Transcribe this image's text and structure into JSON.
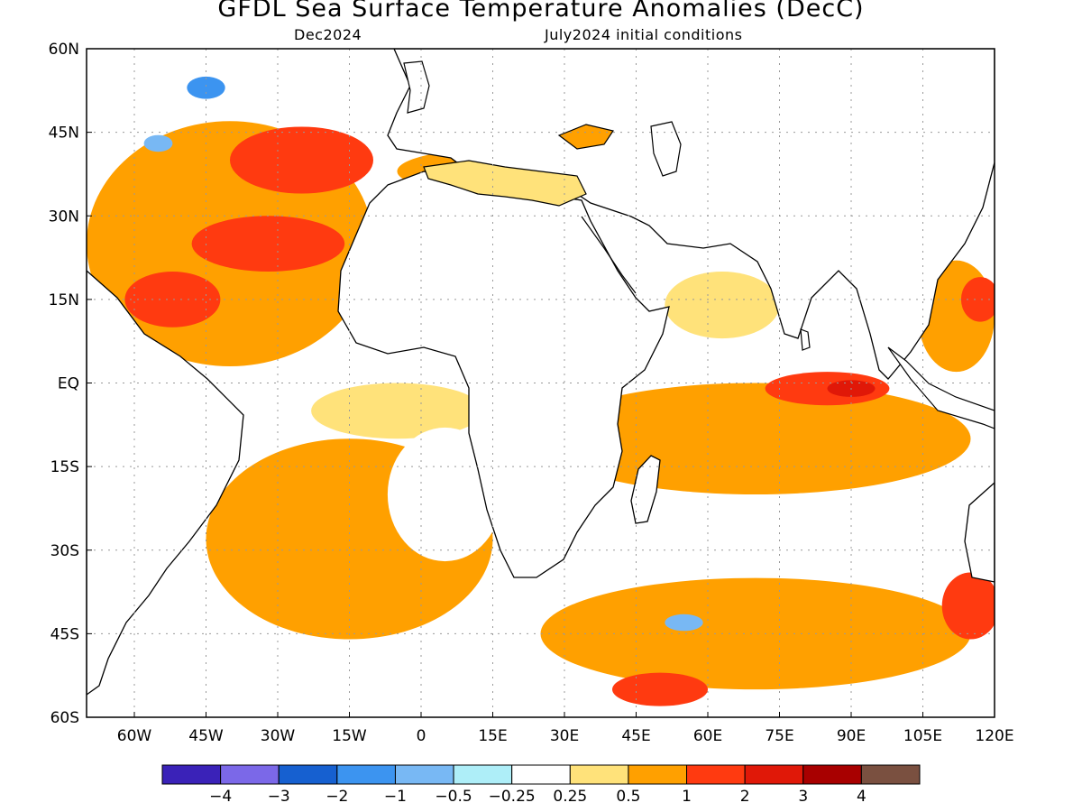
{
  "title": "GFDL Sea Surface Temperature Anomalies (DecC)",
  "subtitle_left": "Dec2024",
  "subtitle_right": "July2024 initial conditions",
  "colors": {
    "land": "#ffffff",
    "coast": "#000000",
    "grid": "#999999"
  },
  "chart_data": {
    "type": "heatmap",
    "title": "GFDL Sea Surface Temperature Anomalies (DecC)",
    "region": "Atlantic and Indian Ocean",
    "xlim": [
      -70,
      120
    ],
    "ylim": [
      -60,
      60
    ],
    "x_ticks": [
      {
        "value": -60,
        "label": "60W"
      },
      {
        "value": -45,
        "label": "45W"
      },
      {
        "value": -30,
        "label": "30W"
      },
      {
        "value": -15,
        "label": "15W"
      },
      {
        "value": 0,
        "label": "0"
      },
      {
        "value": 15,
        "label": "15E"
      },
      {
        "value": 30,
        "label": "30E"
      },
      {
        "value": 45,
        "label": "45E"
      },
      {
        "value": 60,
        "label": "60E"
      },
      {
        "value": 75,
        "label": "75E"
      },
      {
        "value": 90,
        "label": "90E"
      },
      {
        "value": 105,
        "label": "105E"
      },
      {
        "value": 120,
        "label": "120E"
      }
    ],
    "y_ticks": [
      {
        "value": 60,
        "label": "60N"
      },
      {
        "value": 45,
        "label": "45N"
      },
      {
        "value": 30,
        "label": "30N"
      },
      {
        "value": 15,
        "label": "15N"
      },
      {
        "value": 0,
        "label": "EQ"
      },
      {
        "value": -15,
        "label": "15S"
      },
      {
        "value": -30,
        "label": "30S"
      },
      {
        "value": -45,
        "label": "45S"
      },
      {
        "value": -60,
        "label": "60S"
      }
    ],
    "grid": true,
    "colorbar": {
      "colors": [
        "#3a22b8",
        "#7b68e8",
        "#1660d0",
        "#3c94f0",
        "#78b8f4",
        "#aeeef8",
        "#ffffff",
        "#ffe27a",
        "#ffa000",
        "#ff3a10",
        "#e01808",
        "#a80000",
        "#7a5040"
      ],
      "labels": [
        "−4",
        "−3",
        "−2",
        "−1",
        "−0.5",
        "−0.25",
        "0.25",
        "0.5",
        "1",
        "2",
        "3",
        "4"
      ]
    },
    "anomaly_regions": [
      {
        "lon": -40,
        "lat": 25,
        "rx": 30,
        "ry": 22,
        "value": 0.75
      },
      {
        "lon": -32,
        "lat": 25,
        "rx": 16,
        "ry": 5,
        "value": 1.5
      },
      {
        "lon": -52,
        "lat": 15,
        "rx": 10,
        "ry": 5,
        "value": 1.5
      },
      {
        "lon": -25,
        "lat": 40,
        "rx": 15,
        "ry": 6,
        "value": 1.5
      },
      {
        "lon": -45,
        "lat": 53,
        "rx": 4,
        "ry": 2,
        "value": -1.5
      },
      {
        "lon": -55,
        "lat": 43,
        "rx": 3,
        "ry": 1.5,
        "value": -1
      },
      {
        "lon": -15,
        "lat": -28,
        "rx": 30,
        "ry": 18,
        "value": 0.6
      },
      {
        "lon": -5,
        "lat": -5,
        "rx": 18,
        "ry": 5,
        "value": 0.4
      },
      {
        "lon": 5,
        "lat": -20,
        "rx": 12,
        "ry": 12,
        "value": 0.1
      },
      {
        "lon": 70,
        "lat": -10,
        "rx": 45,
        "ry": 10,
        "value": 0.75
      },
      {
        "lon": 85,
        "lat": -1,
        "rx": 13,
        "ry": 3,
        "value": 1.5
      },
      {
        "lon": 90,
        "lat": -1,
        "rx": 5,
        "ry": 1.5,
        "value": 2.5
      },
      {
        "lon": 70,
        "lat": -45,
        "rx": 45,
        "ry": 10,
        "value": 0.7
      },
      {
        "lon": 50,
        "lat": -55,
        "rx": 10,
        "ry": 3,
        "value": 1.5
      },
      {
        "lon": 55,
        "lat": -43,
        "rx": 4,
        "ry": 1.5,
        "value": -1
      },
      {
        "lon": 115,
        "lat": -40,
        "rx": 6,
        "ry": 6,
        "value": 1.5
      },
      {
        "lon": 112,
        "lat": 12,
        "rx": 8,
        "ry": 10,
        "value": 0.8
      },
      {
        "lon": 117,
        "lat": 15,
        "rx": 4,
        "ry": 4,
        "value": 1.5
      },
      {
        "lon": 15,
        "lat": 38,
        "rx": 20,
        "ry": 4,
        "value": 0.6
      },
      {
        "lon": 63,
        "lat": 14,
        "rx": 12,
        "ry": 6,
        "value": 0.4
      }
    ]
  }
}
